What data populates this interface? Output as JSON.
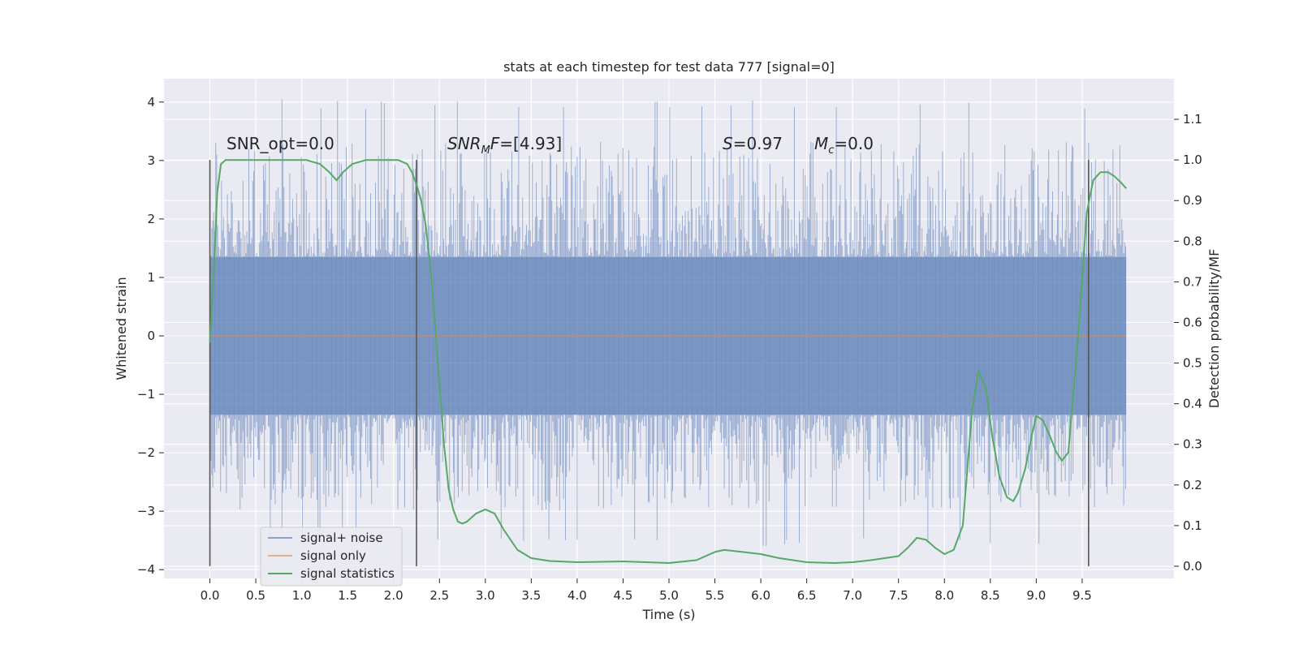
{
  "chart_data": {
    "type": "line",
    "title": "stats at each timestep for test data 777 [signal=0]",
    "xlabel": "Time (s)",
    "ylabel": "Whitened strain",
    "y2label": "Detection probability/MF",
    "xlim": [
      -0.5,
      10.5
    ],
    "ylim": [
      -4.15,
      4.4
    ],
    "y2lim": [
      -0.03,
      1.2
    ],
    "xticks": [
      0.0,
      0.5,
      1.0,
      1.5,
      2.0,
      2.5,
      3.0,
      3.5,
      4.0,
      4.5,
      5.0,
      5.5,
      6.0,
      6.5,
      7.0,
      7.5,
      8.0,
      8.5,
      9.0,
      9.5
    ],
    "xtick_labels": [
      "0.0",
      "0.5",
      "1.0",
      "1.5",
      "2.0",
      "2.5",
      "3.0",
      "3.5",
      "4.0",
      "4.5",
      "5.0",
      "5.5",
      "6.0",
      "6.5",
      "7.0",
      "7.5",
      "8.0",
      "8.5",
      "9.0",
      "9.5"
    ],
    "yticks": [
      4,
      3,
      2,
      1,
      0,
      -1,
      -2,
      -3,
      -4
    ],
    "ytick_labels": [
      "4",
      "3",
      "2",
      "1",
      "0",
      "−1",
      "−2",
      "−3",
      "−4"
    ],
    "y2ticks": [
      1.1,
      1.0,
      0.9,
      0.8,
      0.7,
      0.6,
      0.5,
      0.4,
      0.3,
      0.2,
      0.1,
      0.0
    ],
    "y2tick_labels": [
      "1.1",
      "1.0",
      "0.9",
      "0.8",
      "0.7",
      "0.6",
      "0.5",
      "0.4",
      "0.3",
      "0.2",
      "0.1",
      "0.0"
    ],
    "grid": true,
    "legend_position": "lower-left",
    "colors": {
      "background": "#eaeaf2",
      "grid": "#ffffff",
      "noise": "#4c72b0",
      "signal": "#dd8452",
      "stat": "#55a868",
      "markers": "#555555"
    },
    "series": [
      {
        "name": "signal+ noise",
        "kind": "noise",
        "x_range": [
          0.0,
          9.98
        ],
        "core_amplitude": 1.35,
        "peak_max": 4.05,
        "peak_min": -3.6
      },
      {
        "name": "signal only",
        "kind": "flat",
        "x": [
          0.0,
          9.98
        ],
        "y": [
          0.0,
          0.0
        ]
      },
      {
        "name": "signal statistics",
        "kind": "y2-line",
        "x": [
          0.0,
          0.04,
          0.08,
          0.12,
          0.17,
          0.25,
          0.35,
          0.5,
          0.7,
          0.9,
          1.05,
          1.2,
          1.3,
          1.38,
          1.45,
          1.55,
          1.7,
          1.9,
          2.05,
          2.15,
          2.2,
          2.25,
          2.3,
          2.35,
          2.4,
          2.45,
          2.5,
          2.55,
          2.6,
          2.65,
          2.7,
          2.75,
          2.8,
          2.9,
          3.0,
          3.1,
          3.2,
          3.35,
          3.5,
          3.7,
          4.0,
          4.5,
          5.0,
          5.3,
          5.5,
          5.6,
          5.8,
          6.0,
          6.2,
          6.5,
          6.8,
          7.0,
          7.2,
          7.5,
          7.6,
          7.7,
          7.8,
          7.9,
          8.0,
          8.1,
          8.2,
          8.3,
          8.37,
          8.45,
          8.52,
          8.6,
          8.68,
          8.75,
          8.8,
          8.88,
          8.95,
          9.0,
          9.07,
          9.15,
          9.22,
          9.28,
          9.35,
          9.45,
          9.55,
          9.62,
          9.7,
          9.78,
          9.85,
          9.92,
          9.98
        ],
        "y": [
          0.55,
          0.72,
          0.92,
          0.99,
          1.0,
          1.0,
          1.0,
          1.0,
          1.0,
          1.0,
          1.0,
          0.99,
          0.97,
          0.95,
          0.97,
          0.99,
          1.0,
          1.0,
          1.0,
          0.99,
          0.97,
          0.94,
          0.9,
          0.84,
          0.74,
          0.6,
          0.45,
          0.3,
          0.19,
          0.14,
          0.11,
          0.105,
          0.11,
          0.13,
          0.14,
          0.13,
          0.09,
          0.04,
          0.02,
          0.013,
          0.01,
          0.012,
          0.008,
          0.015,
          0.035,
          0.04,
          0.035,
          0.03,
          0.02,
          0.01,
          0.008,
          0.01,
          0.015,
          0.025,
          0.045,
          0.07,
          0.065,
          0.045,
          0.03,
          0.04,
          0.1,
          0.38,
          0.48,
          0.44,
          0.32,
          0.22,
          0.17,
          0.16,
          0.18,
          0.24,
          0.32,
          0.37,
          0.36,
          0.32,
          0.28,
          0.26,
          0.28,
          0.55,
          0.87,
          0.95,
          0.97,
          0.97,
          0.96,
          0.945,
          0.93
        ]
      }
    ],
    "vertical_markers": [
      {
        "x": 0.0,
        "y2_range": [
          0.0,
          1.0
        ]
      },
      {
        "x": 2.25,
        "y2_range": [
          0.0,
          1.0
        ]
      },
      {
        "x": 9.57,
        "y2_range": [
          0.0,
          1.0
        ]
      }
    ],
    "annotations": {
      "snr_opt": "SNR_opt=0.0",
      "snr_mf_main": "SNR",
      "snr_mf_sub": "M",
      "snr_mf_tail": "F",
      "snr_mf_value": "=[4.93]",
      "s_symbol": "S",
      "s_value": "=0.97",
      "mc_main": "M",
      "mc_sub": "c",
      "mc_value": "=0.0"
    }
  }
}
